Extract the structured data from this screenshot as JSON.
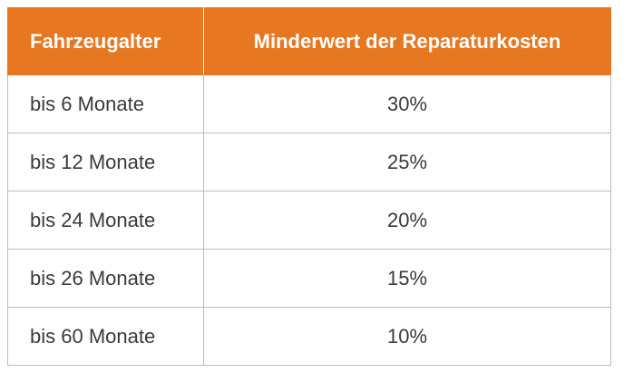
{
  "table": {
    "headers": [
      "Fahrzeugalter",
      "Minderwert der Reparaturkosten"
    ],
    "rows": [
      [
        "bis 6 Monate",
        "30%"
      ],
      [
        "bis 12 Monate",
        "25%"
      ],
      [
        "bis 24 Monate",
        "20%"
      ],
      [
        "bis 26 Monate",
        "15%"
      ],
      [
        "bis 60 Monate",
        "10%"
      ]
    ]
  },
  "colors": {
    "header_bg": "#e87722",
    "header_text": "#ffffff",
    "border": "#bdbdbd",
    "body_text": "#3a3a3a"
  }
}
